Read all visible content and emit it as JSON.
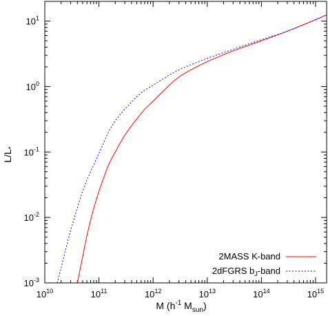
{
  "chart_data": {
    "type": "line",
    "xlabel": "M (h-1 Msun)",
    "ylabel": "L/L*",
    "x_scale": "log",
    "y_scale": "log",
    "xlim": [
      10000000000.0,
      1600000000000000.0
    ],
    "ylim": [
      0.001,
      20
    ],
    "grid": false,
    "legend_position": "bottom-right",
    "x_ticks": [
      {
        "base": "10",
        "exp": "10",
        "value": 10000000000.0
      },
      {
        "base": "10",
        "exp": "11",
        "value": 100000000000.0
      },
      {
        "base": "10",
        "exp": "12",
        "value": 1000000000000.0
      },
      {
        "base": "10",
        "exp": "13",
        "value": 10000000000000.0
      },
      {
        "base": "10",
        "exp": "14",
        "value": 100000000000000.0
      },
      {
        "base": "10",
        "exp": "15",
        "value": 1000000000000000.0
      }
    ],
    "y_ticks": [
      {
        "base": "10",
        "exp": "-3",
        "value": 0.001
      },
      {
        "base": "10",
        "exp": "-2",
        "value": 0.01
      },
      {
        "base": "10",
        "exp": "-1",
        "value": 0.1
      },
      {
        "base": "10",
        "exp": "0",
        "value": 1
      },
      {
        "base": "10",
        "exp": "1",
        "value": 10
      }
    ],
    "series": [
      {
        "name": "2MASS K-band",
        "color": "#ff0000",
        "dash": "solid",
        "x": [
          40000000000.0,
          50000000000.0,
          60000000000.0,
          80000000000.0,
          100000000000.0,
          150000000000.0,
          200000000000.0,
          300000000000.0,
          500000000000.0,
          700000000000.0,
          1000000000000.0,
          2000000000000.0,
          3000000000000.0,
          5000000000000.0,
          10000000000000.0,
          30000000000000.0,
          100000000000000.0,
          300000000000000.0,
          1000000000000000.0,
          1600000000000000.0
        ],
        "y": [
          0.001,
          0.0025,
          0.0053,
          0.0137,
          0.025,
          0.063,
          0.1,
          0.18,
          0.32,
          0.45,
          0.6,
          1.05,
          1.4,
          1.8,
          2.4,
          3.5,
          5.0,
          7.0,
          10.5,
          12.5
        ]
      },
      {
        "name": "2dFGRS bJ-band",
        "color": "#0000ff",
        "dash": "dotted",
        "x": [
          17000000000.0,
          20000000000.0,
          30000000000.0,
          50000000000.0,
          70000000000.0,
          100000000000.0,
          150000000000.0,
          200000000000.0,
          300000000000.0,
          500000000000.0,
          700000000000.0,
          1000000000000.0,
          2000000000000.0,
          3000000000000.0,
          5000000000000.0,
          10000000000000.0,
          30000000000000.0,
          100000000000000.0,
          300000000000000.0,
          1000000000000000.0,
          1600000000000000.0
        ],
        "y": [
          0.001,
          0.0017,
          0.0063,
          0.025,
          0.05,
          0.095,
          0.2,
          0.3,
          0.45,
          0.7,
          0.88,
          1.05,
          1.5,
          1.8,
          2.15,
          2.7,
          3.7,
          5.2,
          7.0,
          10.5,
          12.5
        ]
      }
    ]
  },
  "axes": {
    "y_title_main": "L/L",
    "y_title_sub": "*",
    "x_title_prefix": "M (h",
    "x_title_exp": "-1",
    "x_title_mid": " M",
    "x_title_sub": "sun",
    "x_title_suffix": ")"
  },
  "legend": {
    "entries": [
      {
        "text_main": "2MASS K-band",
        "text_sub": "",
        "text_after": ""
      },
      {
        "text_main": "2dFGRS b",
        "text_sub": "J",
        "text_after": "-band"
      }
    ]
  }
}
